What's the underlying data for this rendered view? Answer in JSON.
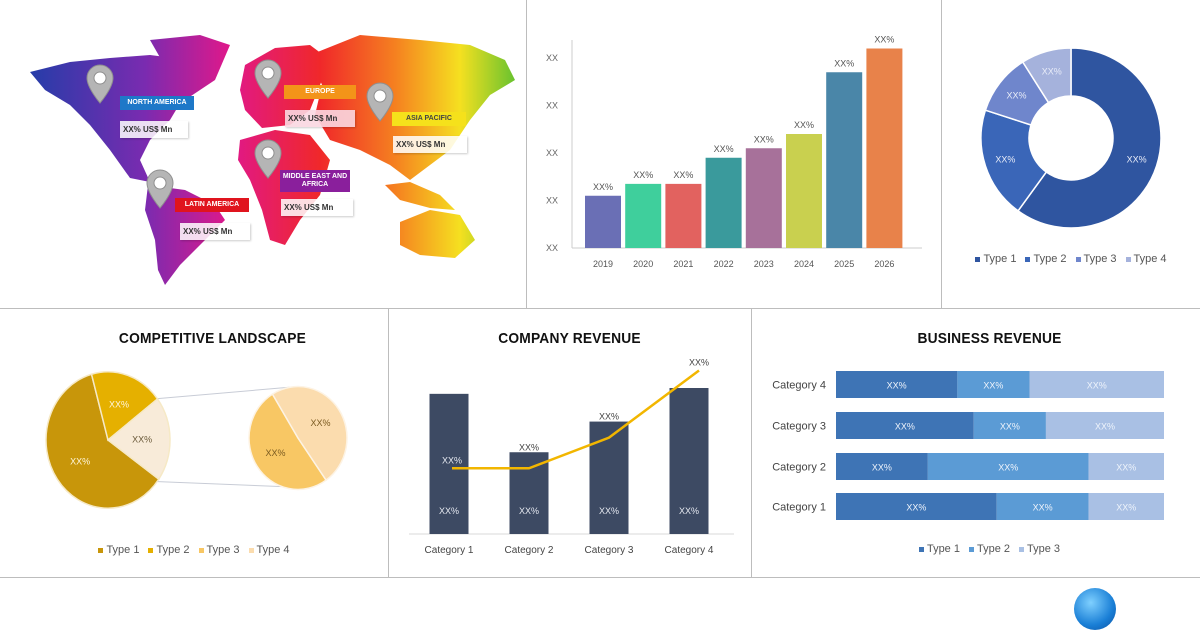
{
  "colors": {
    "accent_blue": "#3e74b5",
    "navy_bar": "#3d4a63",
    "line_gold": "#f2b600"
  },
  "map": {
    "regions": [
      {
        "name": "NORTH AMERICA",
        "value": "XX% US$ Mn",
        "color": "#1e78c8"
      },
      {
        "name": "EUROPE",
        "value": "XX% US$ Mn",
        "color": "#f39419"
      },
      {
        "name": "ASIA PACIFIC",
        "value": "XX% US$ Mn",
        "color": "#f5e11b"
      },
      {
        "name": "MIDDLE EAST AND AFRICA",
        "value": "XX% US$ Mn",
        "color": "#8a1f9c"
      },
      {
        "name": "LATIN AMERICA",
        "value": "XX% US$ Mn",
        "color": "#e0141e"
      }
    ],
    "pin_icon": "map-pin-icon"
  },
  "chart_data": [
    {
      "id": "yearly-bars",
      "type": "bar",
      "categories": [
        "2019",
        "2020",
        "2021",
        "2022",
        "2023",
        "2024",
        "2025",
        "2026"
      ],
      "values": [
        1.1,
        1.35,
        1.35,
        1.9,
        2.1,
        2.4,
        3.7,
        4.2
      ],
      "data_labels": [
        "XX%",
        "XX%",
        "XX%",
        "XX%",
        "XX%",
        "XX%",
        "XX%",
        "XX%"
      ],
      "colors": [
        "#6a6fb5",
        "#3fcf9c",
        "#e2625f",
        "#3a9a9c",
        "#a7719a",
        "#c9d04f",
        "#4a86a8",
        "#e8824a"
      ],
      "yticks": [
        "XX",
        "XX",
        "XX",
        "XX",
        "XX"
      ],
      "ylim": [
        0,
        4.2
      ],
      "grid": false
    },
    {
      "id": "type-donut",
      "type": "pie",
      "categories": [
        "Type 1",
        "Type 2",
        "Type 3",
        "Type 4"
      ],
      "values": [
        0.6,
        0.2,
        0.11,
        0.09
      ],
      "data_labels": [
        "XX%",
        "XX%",
        "XX%",
        "XX%"
      ],
      "colors": [
        "#2f55a0",
        "#3a66b8",
        "#6f86cc",
        "#a5b2dc"
      ],
      "legend": "bottom"
    },
    {
      "id": "competitive-landscape",
      "type": "pie",
      "title": "COMPETITIVE LANDSCAPE",
      "categories": [
        "Type 1",
        "Type 2",
        "Type 3",
        "Type 4"
      ],
      "primary_values": [
        0.61,
        0.19,
        0.2
      ],
      "primary_labels": [
        "XX%",
        "XX%",
        "XX%"
      ],
      "secondary_values": [
        0.51,
        0.49
      ],
      "secondary_labels": [
        "XX%",
        "XX%"
      ],
      "colors": [
        "#c8960a",
        "#e5b000",
        "#f8c764",
        "#fbdcae"
      ],
      "other_color": "#f8ebd9",
      "legend": "bottom"
    },
    {
      "id": "company-revenue",
      "type": "bar",
      "title": "COMPANY REVENUE",
      "categories": [
        "Category 1",
        "Category 2",
        "Category 3",
        "Category 4"
      ],
      "series": [
        {
          "kind": "bar",
          "values": [
            96,
            56,
            77,
            100
          ],
          "data_labels": [
            "XX%",
            "XX%",
            "XX%",
            "XX%"
          ]
        },
        {
          "kind": "line",
          "values": [
            45,
            45,
            66,
            112
          ],
          "data_labels": [
            "XX%",
            "XX%",
            "XX%",
            "XX%"
          ]
        }
      ],
      "ylim": [
        0,
        115
      ]
    },
    {
      "id": "business-revenue",
      "type": "bar",
      "orientation": "horizontal-stacked-100",
      "title": "BUSINESS REVENUE",
      "categories": [
        "Category 4",
        "Category 3",
        "Category 2",
        "Category 1"
      ],
      "series": [
        {
          "name": "Type 1",
          "values": [
            37,
            42,
            28,
            49
          ],
          "color": "#3e74b5"
        },
        {
          "name": "Type 2",
          "values": [
            22,
            22,
            49,
            28
          ],
          "color": "#5b9bd5"
        },
        {
          "name": "Type 3",
          "values": [
            41,
            36,
            23,
            23
          ],
          "color": "#a9c0e4"
        }
      ],
      "data_label": "XX%",
      "legend": "bottom"
    }
  ]
}
